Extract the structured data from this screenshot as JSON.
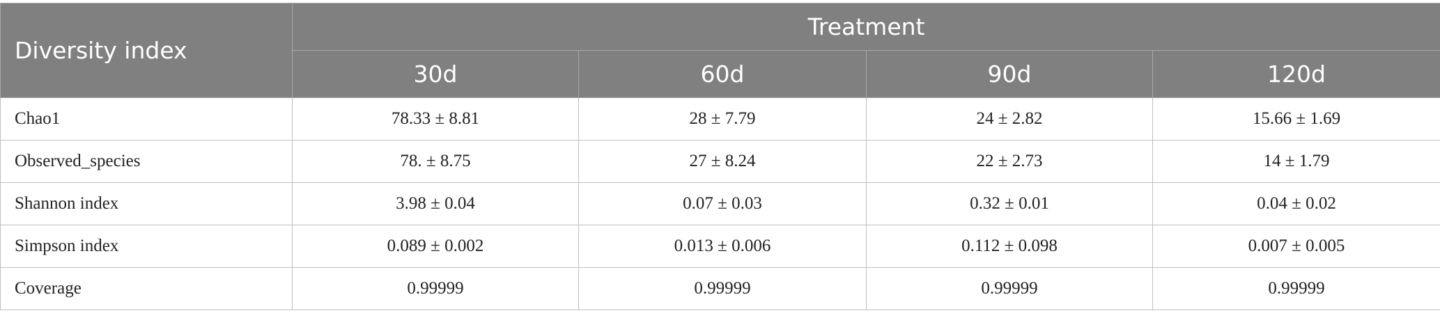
{
  "header": {
    "title": "Diversity index",
    "group": "Treatment",
    "columns": [
      "30d",
      "60d",
      "90d",
      "120d"
    ]
  },
  "table": {
    "rows": [
      [
        "Chao1",
        "78.33 ± 8.81",
        "28 ± 7.79",
        "24 ± 2.82",
        "15.66 ± 1.69"
      ],
      [
        "Observed_species",
        "78. ± 8.75",
        "27 ± 8.24",
        "22 ± 2.73",
        "14 ± 1.79"
      ],
      [
        "Shannon index",
        "3.98 ± 0.04",
        "0.07 ± 0.03",
        "0.32 ± 0.01",
        "0.04 ± 0.02"
      ],
      [
        "Simpson index",
        "0.089 ± 0.002",
        "0.013 ± 0.006",
        "0.112 ± 0.098",
        "0.007 ± 0.005"
      ],
      [
        "Coverage",
        "0.99999",
        "0.99999",
        "0.99999",
        "0.99999"
      ]
    ]
  }
}
